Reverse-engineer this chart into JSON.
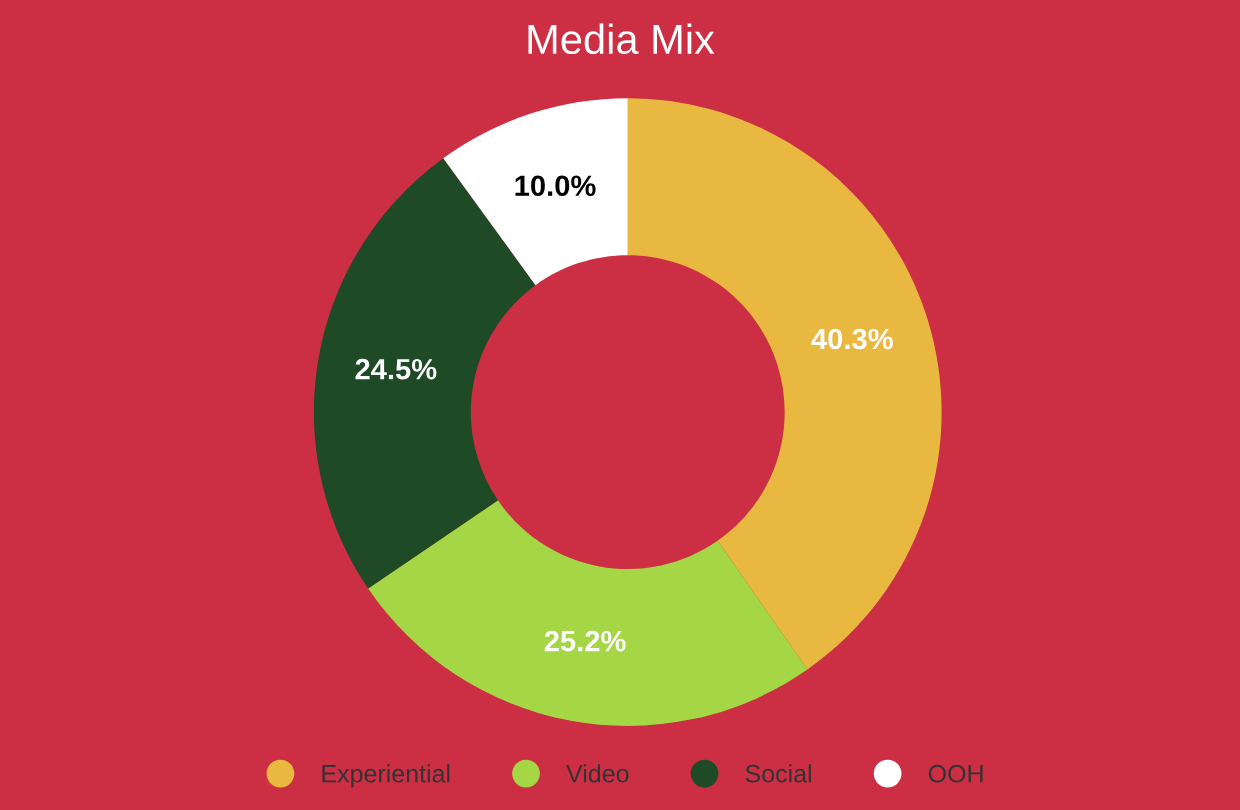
{
  "chart_data": {
    "type": "donut",
    "title": "Media Mix",
    "categories": [
      "Experiential",
      "Video",
      "Social",
      "OOH"
    ],
    "values": [
      40.3,
      25.2,
      24.5,
      10.0
    ],
    "value_labels": [
      "40.3%",
      "25.2%",
      "24.5%",
      "10.0%"
    ],
    "colors": [
      "#e9b840",
      "#a5d645",
      "#1e4a25",
      "#ffffff"
    ],
    "legend": "bottom"
  }
}
